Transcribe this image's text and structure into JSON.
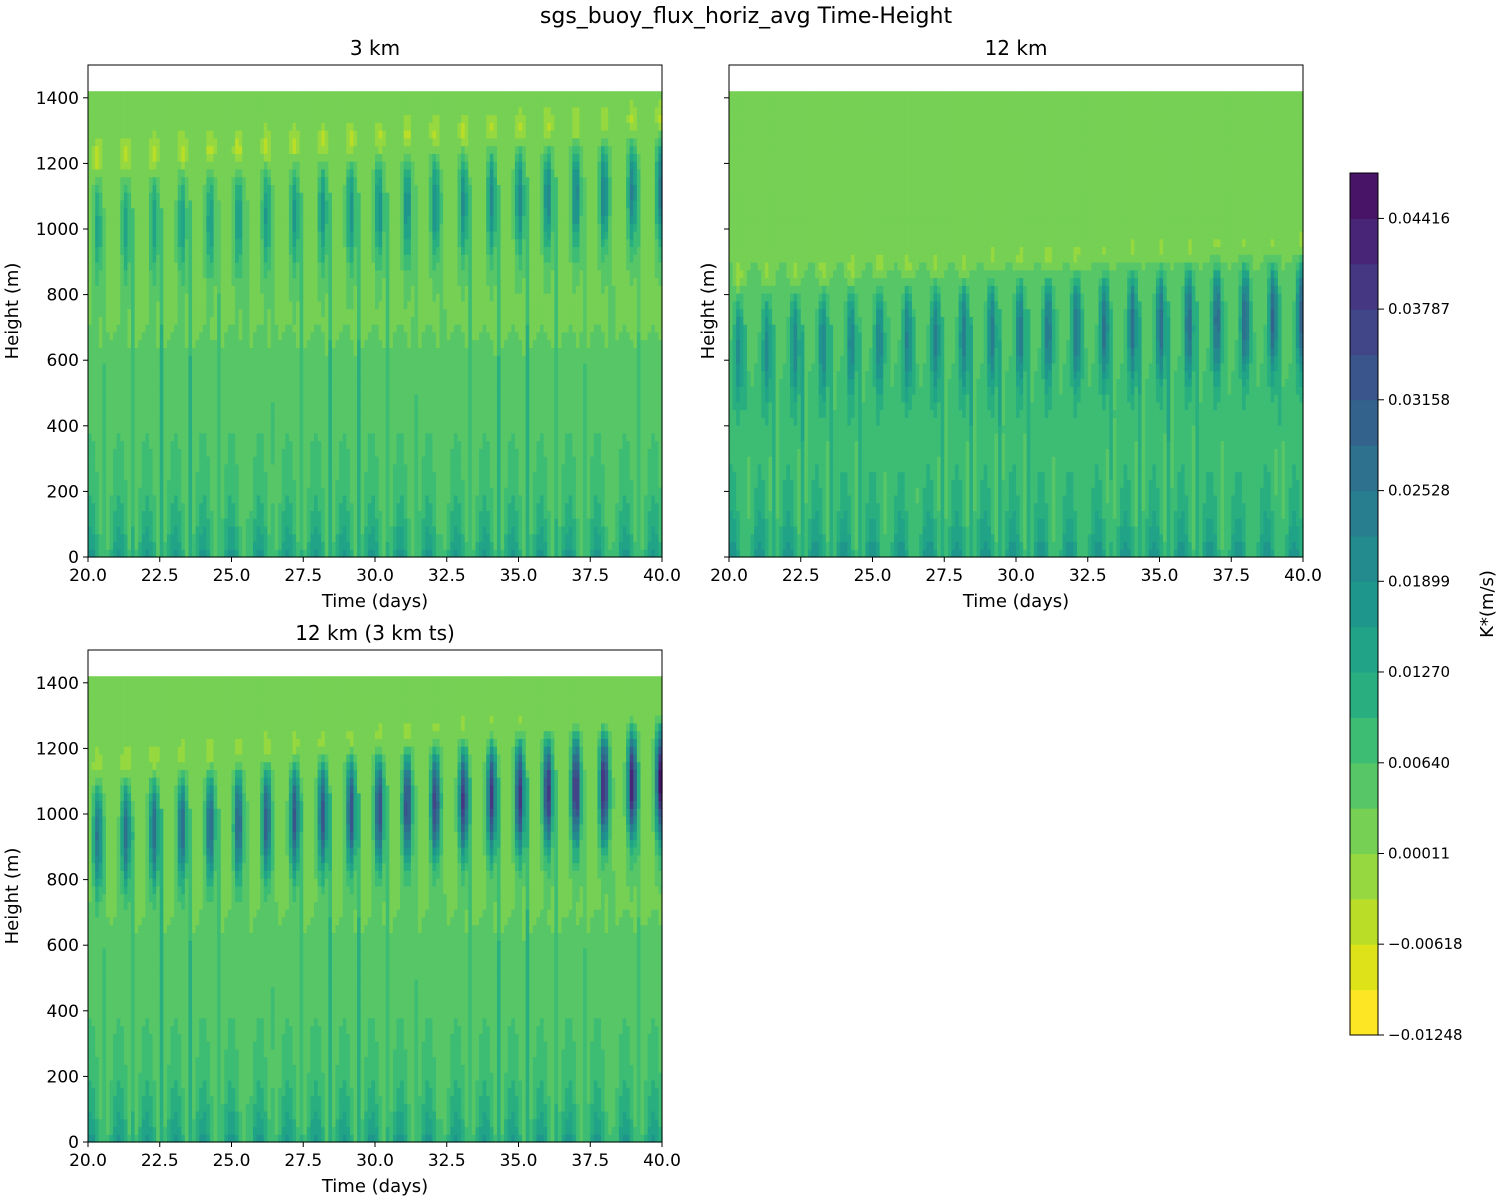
{
  "figure_title": "sgs_buoy_flux_horiz_avg Time-Height",
  "chart_data": [
    {
      "type": "heatmap",
      "title": "3 km",
      "xlabel": "Time (days)",
      "ylabel": "Height (m)",
      "xlim": [
        20,
        40
      ],
      "ylim": [
        0,
        1500
      ],
      "data_top": 1420,
      "xticks": [
        "20.0",
        "22.5",
        "25.0",
        "27.5",
        "30.0",
        "32.5",
        "35.0",
        "37.5",
        "40.0"
      ],
      "yticks": [
        "0",
        "200",
        "400",
        "600",
        "800",
        "1000",
        "1200",
        "1400"
      ],
      "period_days": 0.98,
      "core_center_start": 1000,
      "core_center_end": 1120,
      "core_peak": 0.022,
      "surface_peak": 0.016
    },
    {
      "type": "heatmap",
      "title": "12 km",
      "xlabel": "Time (days)",
      "ylabel": "Height (m)",
      "xlim": [
        20,
        40
      ],
      "ylim": [
        0,
        1500
      ],
      "data_top": 1420,
      "xticks": [
        "20.0",
        "22.5",
        "25.0",
        "27.5",
        "30.0",
        "32.5",
        "35.0",
        "37.5",
        "40.0"
      ],
      "yticks": [],
      "period_days": 0.98,
      "core_center_start": 640,
      "core_center_end": 740,
      "core_peak": 0.026,
      "surface_peak": 0.017
    },
    {
      "type": "heatmap",
      "title": "12 km (3 km ts)",
      "xlabel": "Time (days)",
      "ylabel": "Height (m)",
      "xlim": [
        20,
        40
      ],
      "ylim": [
        0,
        1500
      ],
      "data_top": 1420,
      "xticks": [
        "20.0",
        "22.5",
        "25.0",
        "27.5",
        "30.0",
        "32.5",
        "35.0",
        "37.5",
        "40.0"
      ],
      "yticks": [
        "0",
        "200",
        "400",
        "600",
        "800",
        "1000",
        "1200",
        "1400"
      ],
      "period_days": 0.98,
      "core_center_start": 930,
      "core_center_end": 1100,
      "core_peak": 0.044,
      "surface_peak": 0.016
    }
  ],
  "colorbar": {
    "label": "K*(m/s)",
    "vmin": -0.01248,
    "vmax": 0.04731,
    "levels": 19,
    "ticks": [
      "0.04416",
      "0.03787",
      "0.03158",
      "0.02528",
      "0.01899",
      "0.01270",
      "0.00640",
      "0.00011",
      "−0.00618",
      "−0.01248"
    ],
    "tick_values": [
      0.04416,
      0.03787,
      0.03158,
      0.02528,
      0.01899,
      0.0127,
      0.0064,
      0.00011,
      -0.00618,
      -0.01248
    ],
    "colors": [
      "#fde725",
      "#dde318",
      "#bade28",
      "#95d840",
      "#75d054",
      "#56c667",
      "#3dbc74",
      "#29af7f",
      "#20a386",
      "#1f968b",
      "#238a8d",
      "#287d8e",
      "#2d718e",
      "#33638d",
      "#39558c",
      "#404688",
      "#453781",
      "#482576",
      "#481467"
    ]
  }
}
